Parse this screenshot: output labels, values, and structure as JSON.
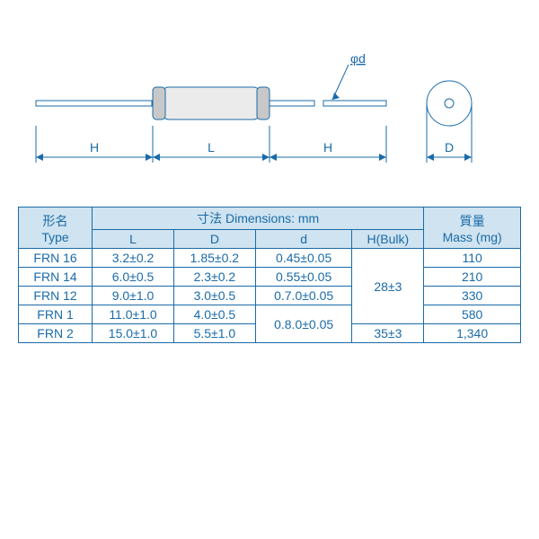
{
  "colors": {
    "border": "#1a6ba8",
    "header_bg": "#cfe3f0",
    "text": "#1a6ba8",
    "diagram_stroke": "#1a6ba8",
    "body_fill": "#ebebeb",
    "end_fill": "#c8c8c8"
  },
  "diagram": {
    "labels": {
      "H": "H",
      "L": "L",
      "D": "D",
      "phi_d": "φd"
    }
  },
  "table": {
    "headers": {
      "type_jp": "形名",
      "type_en": "Type",
      "dims_jp": "寸法 Dimensions: mm",
      "L": "L",
      "D": "D",
      "d": "d",
      "Hbulk": "H(Bulk)",
      "mass_jp": "質量",
      "mass_en": "Mass (mg)"
    },
    "rows": [
      {
        "type": "FRN 16",
        "L": "3.2±0.2",
        "D": "1.85±0.2",
        "d": "0.45±0.05",
        "mass": "110"
      },
      {
        "type": "FRN 14",
        "L": "6.0±0.5",
        "D": "2.3±0.2",
        "d": "0.55±0.05",
        "mass": "210"
      },
      {
        "type": "FRN 12",
        "L": "9.0±1.0",
        "D": "3.0±0.5",
        "d": "0.7.0±0.05",
        "mass": "330"
      },
      {
        "type": "FRN 1",
        "L": "11.0±1.0",
        "D": "4.0±0.5",
        "mass": "580"
      },
      {
        "type": "FRN 2",
        "L": "15.0±1.0",
        "D": "5.5±1.0",
        "mass": "1,340"
      }
    ],
    "merged": {
      "d_4_5": "0.8.0±0.05",
      "H_1_4": "28±3",
      "H_5": "35±3"
    }
  }
}
